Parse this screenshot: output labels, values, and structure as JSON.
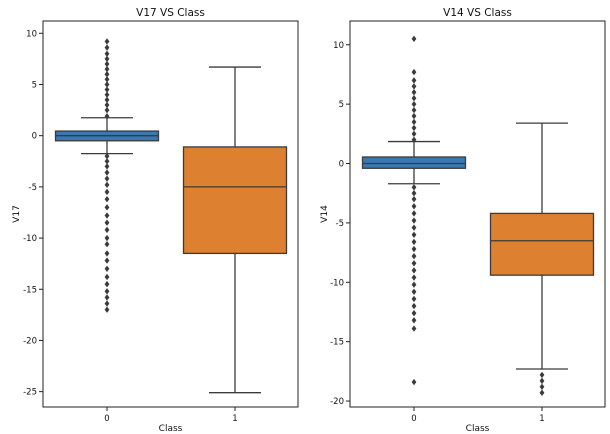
{
  "chart_data": [
    {
      "type": "box",
      "title": "V17 VS Class",
      "xlabel": "Class",
      "ylabel": "V17",
      "categories": [
        "0",
        "1"
      ],
      "yticks": [
        10,
        5,
        0,
        -5,
        -10,
        -15,
        -20,
        -25
      ],
      "ylim": [
        -26.5,
        11.2
      ],
      "boxes": [
        {
          "category": "0",
          "color": "#3a78b1",
          "q1": -0.5,
          "median": 0.0,
          "q3": 0.45,
          "whisker_low": -1.75,
          "whisker_high": 1.75,
          "outliers_high": [
            1.9,
            2.5,
            3.0,
            3.5,
            4.0,
            4.5,
            5.0,
            5.5,
            6.0,
            6.5,
            7.0,
            7.5,
            8.0,
            8.6,
            9.2
          ],
          "outliers_low": [
            -2.0,
            -2.5,
            -3.0,
            -3.6,
            -4.2,
            -4.8,
            -5.5,
            -6.2,
            -7.0,
            -7.8,
            -8.5,
            -9.2,
            -10.0,
            -10.6,
            -11.5,
            -12.2,
            -13.0,
            -13.8,
            -14.5,
            -15.2,
            -15.8,
            -16.4,
            -17.0
          ]
        },
        {
          "category": "1",
          "color": "#dd8030",
          "q1": -11.5,
          "median": -5.0,
          "q3": -1.1,
          "whisker_low": -25.1,
          "whisker_high": 6.7,
          "outliers_high": [],
          "outliers_low": []
        }
      ]
    },
    {
      "type": "box",
      "title": "V14 VS Class",
      "xlabel": "Class",
      "ylabel": "V14",
      "categories": [
        "0",
        "1"
      ],
      "yticks": [
        10,
        5,
        0,
        -5,
        -10,
        -15,
        -20
      ],
      "ylim": [
        -20.5,
        12.0
      ],
      "boxes": [
        {
          "category": "0",
          "color": "#3a78b1",
          "q1": -0.4,
          "median": 0.0,
          "q3": 0.55,
          "whisker_low": -1.7,
          "whisker_high": 1.85,
          "outliers_high": [
            2.0,
            2.5,
            3.0,
            3.5,
            4.0,
            4.5,
            5.0,
            5.5,
            6.0,
            6.5,
            7.0,
            7.7,
            10.5
          ],
          "outliers_low": [
            -2.0,
            -2.5,
            -3.0,
            -3.6,
            -4.2,
            -4.8,
            -5.4,
            -6.0,
            -6.6,
            -7.2,
            -7.8,
            -8.4,
            -9.0,
            -9.6,
            -10.2,
            -10.8,
            -11.4,
            -12.0,
            -12.6,
            -13.2,
            -13.9,
            -18.4
          ]
        },
        {
          "category": "1",
          "color": "#dd8030",
          "q1": -9.4,
          "median": -6.5,
          "q3": -4.2,
          "whisker_low": -17.3,
          "whisker_high": 3.4,
          "outliers_high": [],
          "outliers_low": [
            -17.8,
            -18.3,
            -18.8,
            -19.3
          ]
        }
      ]
    }
  ]
}
